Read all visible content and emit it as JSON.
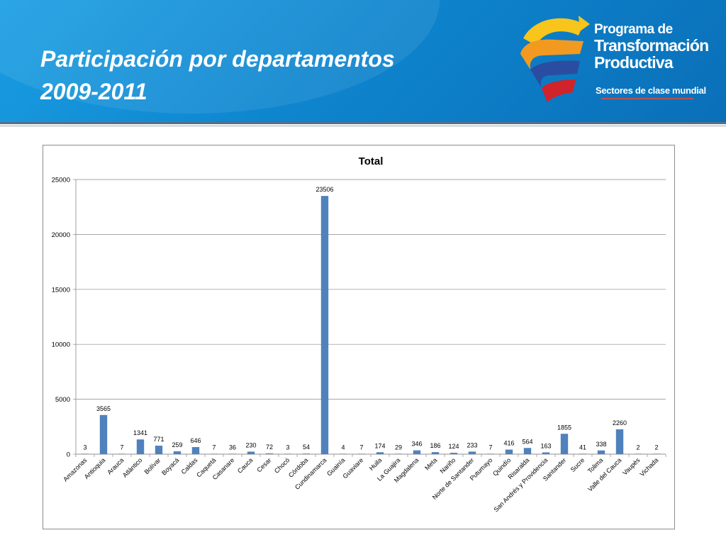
{
  "slide": {
    "title_line1": "Participación por departamentos",
    "title_line2": "2009-2011"
  },
  "logo": {
    "line1": "Programa de",
    "line2": "Transformación",
    "line3": "Productiva",
    "tagline": "Sectores de clase mundial"
  },
  "colors": {
    "header_blue": "#0e86cf",
    "bar": "#4f81bd"
  },
  "chart_data": {
    "type": "bar",
    "title": "Total",
    "xlabel": "",
    "ylabel": "",
    "ylim": [
      0,
      25000
    ],
    "yticks": [
      0,
      5000,
      10000,
      15000,
      20000,
      25000
    ],
    "grid": true,
    "legend": "none",
    "categories": [
      "Amazonas",
      "Antioquia",
      "Arauca",
      "Atlántico",
      "Bolívar",
      "Boyacá",
      "Caldas",
      "Caquetá",
      "Casanare",
      "Cauca",
      "Cesar",
      "Chocó",
      "Córdoba",
      "Cundinamarca",
      "Guainía",
      "Guaviare",
      "Huila",
      "La Guajira",
      "Magdalena",
      "Meta",
      "Nariño",
      "Norte de Santander",
      "Putumayo",
      "Quindío",
      "Risaralda",
      "San Andrés y Providencia",
      "Santander",
      "Sucre",
      "Tolima",
      "Valle del Cauca",
      "Vaupés",
      "Vichada"
    ],
    "values": [
      3,
      3565,
      7,
      1341,
      771,
      259,
      646,
      7,
      36,
      230,
      72,
      3,
      54,
      23506,
      4,
      7,
      174,
      29,
      346,
      186,
      124,
      233,
      7,
      416,
      564,
      163,
      1855,
      41,
      338,
      2260,
      2,
      2
    ]
  }
}
